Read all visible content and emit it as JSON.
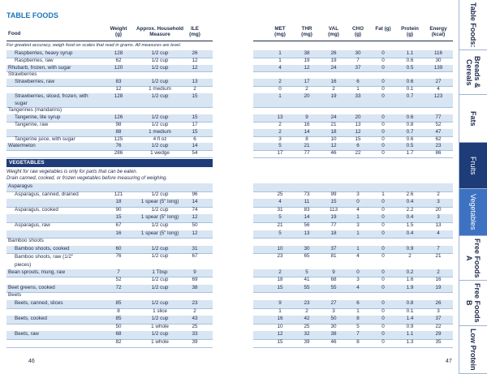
{
  "header": {
    "title": "TABLE FOODS",
    "columns_left": [
      "Food",
      "Weight (g)",
      "Approx. Household Measure",
      "ILE (mg)"
    ],
    "columns_right": [
      "MET (mg)",
      "THR (mg)",
      "VAL (mg)",
      "CHO (g)",
      "Fat (g)",
      "Protein (g)",
      "Energy (kcal)"
    ],
    "note": "For greatest accuracy, weigh food on scales that read in grams. All measures are level."
  },
  "sections": [
    {
      "rows": [
        {
          "food": "Raspberries, heavy syrup",
          "indent": true,
          "shade": true,
          "weight": 128,
          "measure": "1/2 cup",
          "ile": 26,
          "values": [
            1,
            38,
            26,
            30,
            0,
            1.1,
            116
          ]
        },
        {
          "food": "Raspberries, raw",
          "indent": true,
          "weight": 62,
          "measure": "1/2 cup",
          "ile": 12,
          "values": [
            1,
            19,
            19,
            7,
            0,
            0.6,
            30
          ]
        },
        {
          "food": "Rhubarb, frozen, with sugar",
          "shade": true,
          "weight": 120,
          "measure": "1/2 cup",
          "ile": 12,
          "values": [
            4,
            12,
            24,
            37,
            0,
            0.5,
            139
          ]
        },
        {
          "group": "Strawberries"
        },
        {
          "food": "Strawberries, raw",
          "indent": true,
          "shade": true,
          "weight": 83,
          "measure": "1/2 cup",
          "ile": 13,
          "values": [
            2,
            17,
            16,
            6,
            0,
            0.6,
            27
          ]
        },
        {
          "weight": 12,
          "measure": "1 medium",
          "ile": 2,
          "values": [
            0,
            2,
            2,
            1,
            0,
            0.1,
            4
          ]
        },
        {
          "food": "Strawberries, sliced, frozen, with sugar",
          "indent": true,
          "tall": true,
          "shade": true,
          "weight": 128,
          "measure": "1/2 cup",
          "ile": 15,
          "values": [
            1,
            20,
            19,
            33,
            0,
            0.7,
            123
          ]
        },
        {
          "group": "Tangerines (mandarins)"
        },
        {
          "food": "Tangerine, lite syrup",
          "indent": true,
          "shade": true,
          "weight": 126,
          "measure": "1/2 cup",
          "ile": 15,
          "values": [
            13,
            9,
            24,
            20,
            0,
            0.6,
            77
          ]
        },
        {
          "food": "Tangerine, raw",
          "indent": true,
          "weight": 98,
          "measure": "1/2 cup",
          "ile": 17,
          "values": [
            2,
            16,
            21,
            13,
            0,
            0.8,
            52
          ]
        },
        {
          "shade": true,
          "weight": 88,
          "measure": "1 medium",
          "ile": 15,
          "values": [
            2,
            14,
            18,
            12,
            0,
            0.7,
            47
          ]
        },
        {
          "food": "Tangerine juice, with sugar",
          "indent": true,
          "weight": 125,
          "measure": "4 fl oz",
          "ile": 6,
          "values": [
            3,
            8,
            10,
            15,
            0,
            0.6,
            62
          ]
        },
        {
          "food": "Watermelon",
          "shade": true,
          "weight": 76,
          "measure": "1/2 cup",
          "ile": 14,
          "values": [
            5,
            21,
            12,
            6,
            0,
            0.5,
            23
          ]
        },
        {
          "weight": 286,
          "measure": "1 wedge",
          "ile": 54,
          "values": [
            17,
            77,
            46,
            22,
            0,
            1.7,
            86
          ]
        }
      ]
    },
    {
      "title": "VEGETABLES",
      "notes": [
        "Weight for raw vegetables is only for parts that can be eaten.",
        "Drain canned, cooked, or frozen vegetables before measuring of weighing."
      ],
      "rows": [
        {
          "group": "Asparagus",
          "shade": true
        },
        {
          "food": "Asparagus, canned, drained",
          "indent": true,
          "weight": 121,
          "measure": "1/2 cup",
          "ile": 96,
          "values": [
            25,
            73,
            99,
            3,
            1,
            2.6,
            2
          ]
        },
        {
          "shade": true,
          "weight": 18,
          "measure": "1 spear (5\" long)",
          "ile": 14,
          "values": [
            4,
            11,
            15,
            0,
            0,
            0.4,
            3
          ]
        },
        {
          "food": "Asparagus, cooked",
          "indent": true,
          "weight": 90,
          "measure": "1/2 cup",
          "ile": 74,
          "values": [
            31,
            83,
            113,
            4,
            0,
            2.2,
            20
          ]
        },
        {
          "shade": true,
          "weight": 15,
          "measure": "1 spear (5\" long)",
          "ile": 12,
          "values": [
            5,
            14,
            19,
            1,
            0,
            0.4,
            3
          ]
        },
        {
          "food": "Asparagus, raw",
          "indent": true,
          "weight": 67,
          "measure": "1/2 cup",
          "ile": 50,
          "values": [
            21,
            56,
            77,
            3,
            0,
            1.5,
            13
          ]
        },
        {
          "shade": true,
          "weight": 16,
          "measure": "1 spear (5\" long)",
          "ile": 12,
          "values": [
            5,
            13,
            18,
            1,
            0,
            0.4,
            4
          ]
        },
        {
          "group": "Bamboo shoots"
        },
        {
          "food": "Bamboo shoots, cooked",
          "indent": true,
          "shade": true,
          "weight": 60,
          "measure": "1/2 cup",
          "ile": 31,
          "values": [
            10,
            30,
            37,
            1,
            0,
            0.9,
            7
          ]
        },
        {
          "food": "Bamboo shoots, raw (1/2\" pieces)",
          "indent": true,
          "tall": true,
          "weight": 76,
          "measure": "1/2 cup",
          "ile": 67,
          "values": [
            23,
            65,
            81,
            4,
            0,
            2,
            21
          ]
        },
        {
          "food": "Bean sprouts, mung, raw",
          "shade": true,
          "weight": 7,
          "measure": "1 Tbsp",
          "ile": 9,
          "values": [
            2,
            5,
            9,
            0,
            0,
            0.2,
            2
          ]
        },
        {
          "weight": 52,
          "measure": "1/2 cup",
          "ile": 69,
          "values": [
            18,
            41,
            68,
            3,
            0,
            1.6,
            16
          ]
        },
        {
          "food": "Beet greens, cooked",
          "shade": true,
          "weight": 72,
          "measure": "1/2 cup",
          "ile": 38,
          "values": [
            15,
            55,
            55,
            4,
            0,
            1.9,
            19
          ]
        },
        {
          "group": "Beets"
        },
        {
          "food": "Beets, canned, slices",
          "indent": true,
          "shade": true,
          "weight": 85,
          "measure": "1/2 cup",
          "ile": 23,
          "values": [
            9,
            23,
            27,
            6,
            0,
            0.8,
            26
          ]
        },
        {
          "weight": 8,
          "measure": "1 slice",
          "ile": 2,
          "values": [
            1,
            2,
            3,
            1,
            0,
            0.1,
            3
          ]
        },
        {
          "food": "Beets, cooked",
          "indent": true,
          "shade": true,
          "weight": 85,
          "measure": "1/2 cup",
          "ile": 43,
          "values": [
            16,
            42,
            50,
            8,
            0,
            1.4,
            37
          ]
        },
        {
          "weight": 50,
          "measure": "1 whole",
          "ile": 25,
          "values": [
            10,
            25,
            30,
            5,
            0,
            0.9,
            22
          ]
        },
        {
          "food": "Beets, raw",
          "indent": true,
          "shade": true,
          "weight": 68,
          "measure": "1/2 cup",
          "ile": 33,
          "values": [
            12,
            32,
            38,
            7,
            0,
            1.1,
            29
          ]
        },
        {
          "weight": 82,
          "measure": "1 whole",
          "ile": 39,
          "values": [
            15,
            39,
            46,
            8,
            0,
            1.3,
            35
          ]
        }
      ]
    }
  ],
  "page_numbers": [
    46,
    47
  ],
  "tabs": [
    {
      "label": "Table Foods:"
    },
    {
      "label": "Breads & Cereals"
    },
    {
      "label": "Fats"
    },
    {
      "label": "Fruits",
      "style": "active"
    },
    {
      "label": "Vegetables",
      "style": "highlight"
    },
    {
      "label": "Free Foods A"
    },
    {
      "label": "Free Foods B"
    },
    {
      "label": "Low Protein"
    }
  ]
}
